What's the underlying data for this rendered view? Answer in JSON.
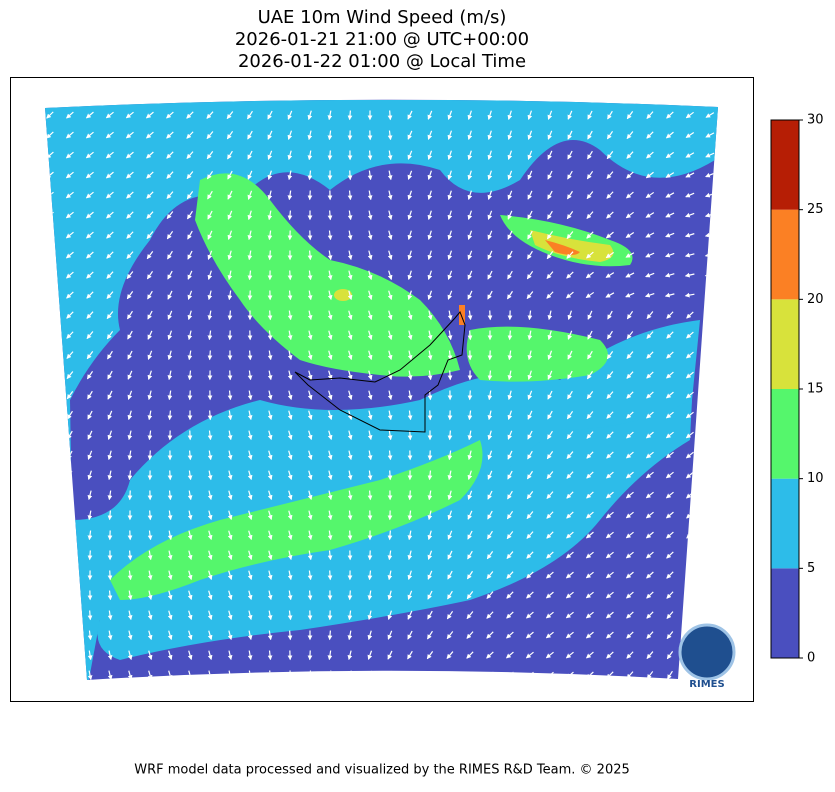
{
  "map": {
    "title": [
      "UAE 10m Wind Speed (m/s)",
      "2026-01-21 21:00 @ UTC+00:00",
      "2026-01-22 01:00 @ Local Time"
    ],
    "colorbar": {
      "lim": [
        0,
        30
      ],
      "ticks": [
        0,
        5,
        10,
        15,
        20,
        25,
        30
      ],
      "colors": [
        "#4a4fbf",
        "#2dbce9",
        "#55f66c",
        "#d8e23b",
        "#fb8024",
        "#b61e05"
      ]
    },
    "logo": "RIMES",
    "footer": "WRF model data processed and visualized by the RIMES R&D Team. © 2025"
  }
}
